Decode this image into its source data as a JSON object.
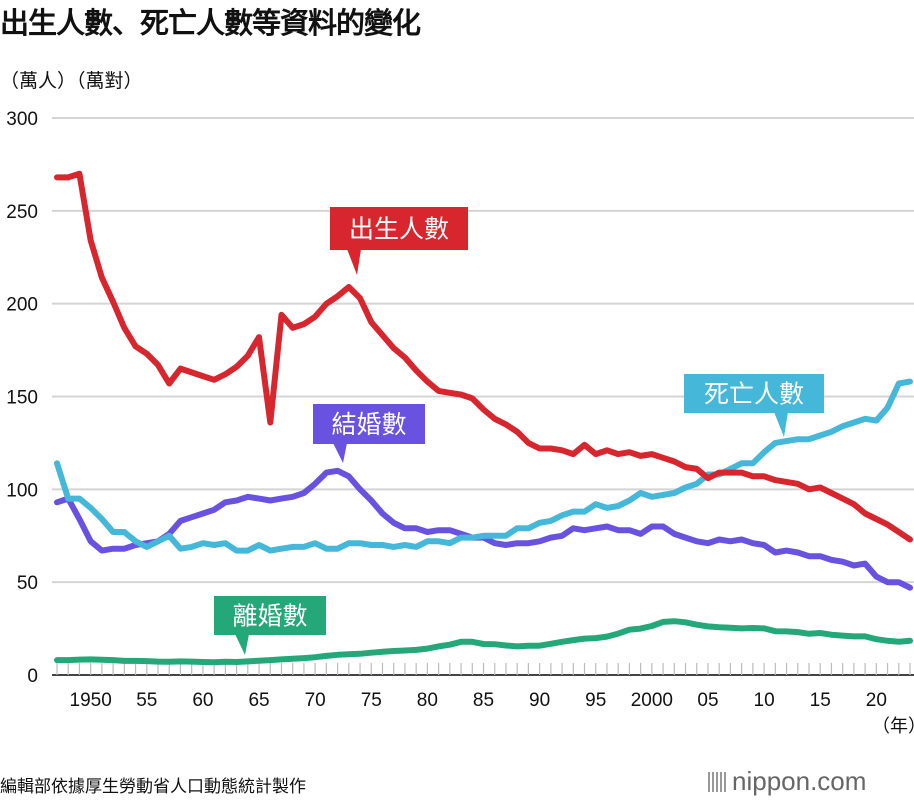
{
  "title": "出生人數、死亡人數等資料的變化",
  "units_label": "（萬人）（萬對）",
  "x_unit_label": "（年）",
  "source": "編輯部依據厚生勞動省人口動態統計製作",
  "logo": "nippon.com",
  "chart_data": {
    "type": "line",
    "title": "出生人數、死亡人數等資料的變化",
    "ylabel": "（萬人）（萬對）",
    "xlabel": "（年）",
    "ylim": [
      0,
      300
    ],
    "xlim": [
      1947,
      2023
    ],
    "grid": true,
    "yticks": [
      "0",
      "50",
      "100",
      "150",
      "200",
      "250",
      "300"
    ],
    "xticks": [
      {
        "year": 1950,
        "label": "1950"
      },
      {
        "year": 1955,
        "label": "55"
      },
      {
        "year": 1960,
        "label": "60"
      },
      {
        "year": 1965,
        "label": "65"
      },
      {
        "year": 1970,
        "label": "70"
      },
      {
        "year": 1975,
        "label": "75"
      },
      {
        "year": 1980,
        "label": "80"
      },
      {
        "year": 1985,
        "label": "85"
      },
      {
        "year": 1990,
        "label": "90"
      },
      {
        "year": 1995,
        "label": "95"
      },
      {
        "year": 2000,
        "label": "2000"
      },
      {
        "year": 2005,
        "label": "05"
      },
      {
        "year": 2010,
        "label": "10"
      },
      {
        "year": 2015,
        "label": "15"
      },
      {
        "year": 2020,
        "label": "20"
      }
    ],
    "x_start": 1947,
    "series": [
      {
        "name": "出生人數",
        "color": "#d7262e",
        "values": [
          268,
          268,
          270,
          234,
          214,
          201,
          187,
          177,
          173,
          167,
          157,
          165,
          163,
          161,
          159,
          162,
          166,
          172,
          182,
          136,
          194,
          187,
          189,
          193,
          200,
          204,
          209,
          203,
          190,
          183,
          176,
          171,
          164,
          158,
          153,
          152,
          151,
          149,
          143,
          138,
          135,
          131,
          125,
          122,
          122,
          121,
          119,
          124,
          119,
          121,
          119,
          120,
          118,
          119,
          117,
          115,
          112,
          111,
          106,
          109,
          109,
          109,
          107,
          107,
          105,
          104,
          103,
          100,
          101,
          98,
          95,
          92,
          87,
          84,
          81,
          77,
          73
        ]
      },
      {
        "name": "死亡人數",
        "color": "#45b7d9",
        "values": [
          114,
          95,
          95,
          90,
          84,
          77,
          77,
          72,
          69,
          72,
          75,
          68,
          69,
          71,
          70,
          71,
          67,
          67,
          70,
          67,
          68,
          69,
          69,
          71,
          68,
          68,
          71,
          71,
          70,
          70,
          69,
          70,
          69,
          72,
          72,
          71,
          74,
          74,
          75,
          75,
          75,
          79,
          79,
          82,
          83,
          86,
          88,
          88,
          92,
          90,
          91,
          94,
          98,
          96,
          97,
          98,
          101,
          103,
          108,
          108,
          111,
          114,
          114,
          120,
          125,
          126,
          127,
          127,
          129,
          131,
          134,
          136,
          138,
          137,
          144,
          157,
          158
        ]
      },
      {
        "name": "結婚數",
        "color": "#6a52e0",
        "values": [
          93,
          95,
          84,
          72,
          67,
          68,
          68,
          70,
          71,
          72,
          76,
          83,
          85,
          87,
          89,
          93,
          94,
          96,
          95,
          94,
          95,
          96,
          98,
          103,
          109,
          110,
          107,
          100,
          94,
          87,
          82,
          79,
          79,
          77,
          78,
          78,
          76,
          74,
          74,
          71,
          70,
          71,
          71,
          72,
          74,
          75,
          79,
          78,
          79,
          80,
          78,
          78,
          76,
          80,
          80,
          76,
          74,
          72,
          71,
          73,
          72,
          73,
          71,
          70,
          66,
          67,
          66,
          64,
          64,
          62,
          61,
          59,
          60,
          53,
          50,
          50,
          47
        ]
      },
      {
        "name": "離婚數",
        "color": "#24a87a",
        "values": [
          8,
          8,
          8.3,
          8.4,
          8.2,
          8,
          7.6,
          7.6,
          7.5,
          7.2,
          7.1,
          7.3,
          7.2,
          7,
          6.9,
          7.1,
          7,
          7.3,
          7.7,
          8,
          8.4,
          8.7,
          9.1,
          9.6,
          10.3,
          10.9,
          11.2,
          11.4,
          12,
          12.5,
          12.9,
          13.2,
          13.5,
          14.2,
          15.4,
          16.3,
          17.9,
          17.9,
          16.7,
          16.6,
          15.9,
          15.4,
          15.8,
          15.8,
          16.8,
          17.9,
          18.8,
          19.6,
          19.9,
          20.7,
          22.3,
          24.4,
          25,
          26.4,
          28.6,
          29,
          28.4,
          27.1,
          26.2,
          25.7,
          25.5,
          25.1,
          25.3,
          25.1,
          23.6,
          23.5,
          23.1,
          22.2,
          22.6,
          21.7,
          21.2,
          20.8,
          20.8,
          19.3,
          18.4,
          17.9,
          18.4
        ]
      }
    ],
    "annotations": [
      {
        "text": "出生人數",
        "series": "出生人數",
        "color": "#d7262e"
      },
      {
        "text": "結婚數",
        "series": "結婚數",
        "color": "#6a52e0"
      },
      {
        "text": "死亡人數",
        "series": "死亡人數",
        "color": "#45b7d9"
      },
      {
        "text": "離婚數",
        "series": "離婚數",
        "color": "#24a87a"
      }
    ]
  }
}
